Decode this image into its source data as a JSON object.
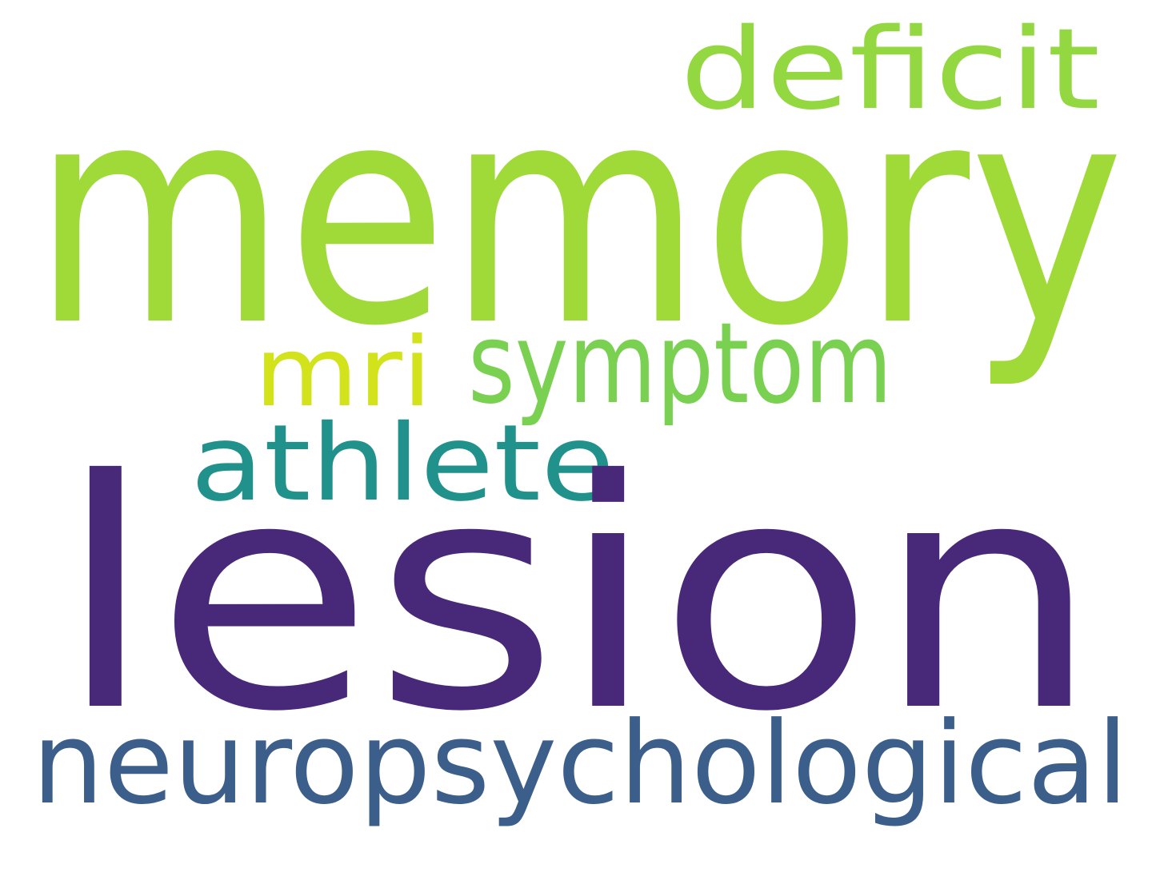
{
  "wordcloud": {
    "words": [
      {
        "id": "memory",
        "text": "memory",
        "color": "#a0da39"
      },
      {
        "id": "lesion",
        "text": "lesion",
        "color": "#482878"
      },
      {
        "id": "neuropsychological",
        "text": "neuropsychological",
        "color": "#3b5e8b"
      },
      {
        "id": "deficit",
        "text": "deficit",
        "color": "#93d741"
      },
      {
        "id": "symptom",
        "text": "symptom",
        "color": "#7ad151"
      },
      {
        "id": "athlete",
        "text": "athlete",
        "color": "#21918c"
      },
      {
        "id": "mri",
        "text": "mri",
        "color": "#d2e21b"
      }
    ]
  }
}
